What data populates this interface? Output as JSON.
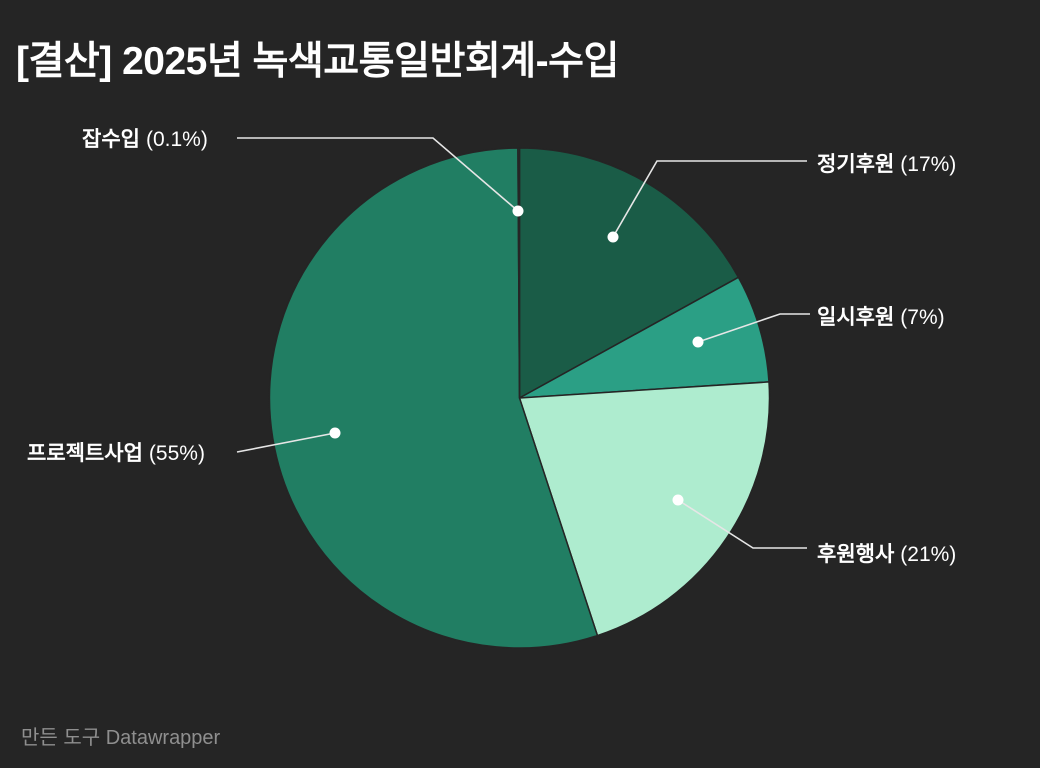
{
  "title": "[결산] 2025년 녹색교통일반회계-수입",
  "footer": {
    "credit": "만든 도구 Datawrapper"
  },
  "colors": {
    "background": "#252525",
    "title_text": "#ffffff",
    "label_text": "#ffffff",
    "muted_text": "#8f8f8f",
    "callout_line": "#e6e6e6",
    "callout_dot": "#ffffff",
    "slice_stroke": "#252525"
  },
  "chart_data": {
    "type": "pie",
    "title": "[결산] 2025년 녹색교통일반회계-수입",
    "direction": "clockwise",
    "start_angle_deg": -90,
    "legend_position": "callout-labels",
    "slices": [
      {
        "label": "정기후원",
        "value": 17,
        "pct_label": "(17%)",
        "color": "#1a5c47"
      },
      {
        "label": "일시후원",
        "value": 7,
        "pct_label": "(7%)",
        "color": "#2b9f85"
      },
      {
        "label": "후원행사",
        "value": 21,
        "pct_label": "(21%)",
        "color": "#aeeccf"
      },
      {
        "label": "프로젝트사업",
        "value": 55,
        "pct_label": "(55%)",
        "color": "#217e63"
      },
      {
        "label": "잡수입",
        "value": 0.1,
        "pct_label": "(0.1%)",
        "color": "#2a7260"
      }
    ]
  }
}
